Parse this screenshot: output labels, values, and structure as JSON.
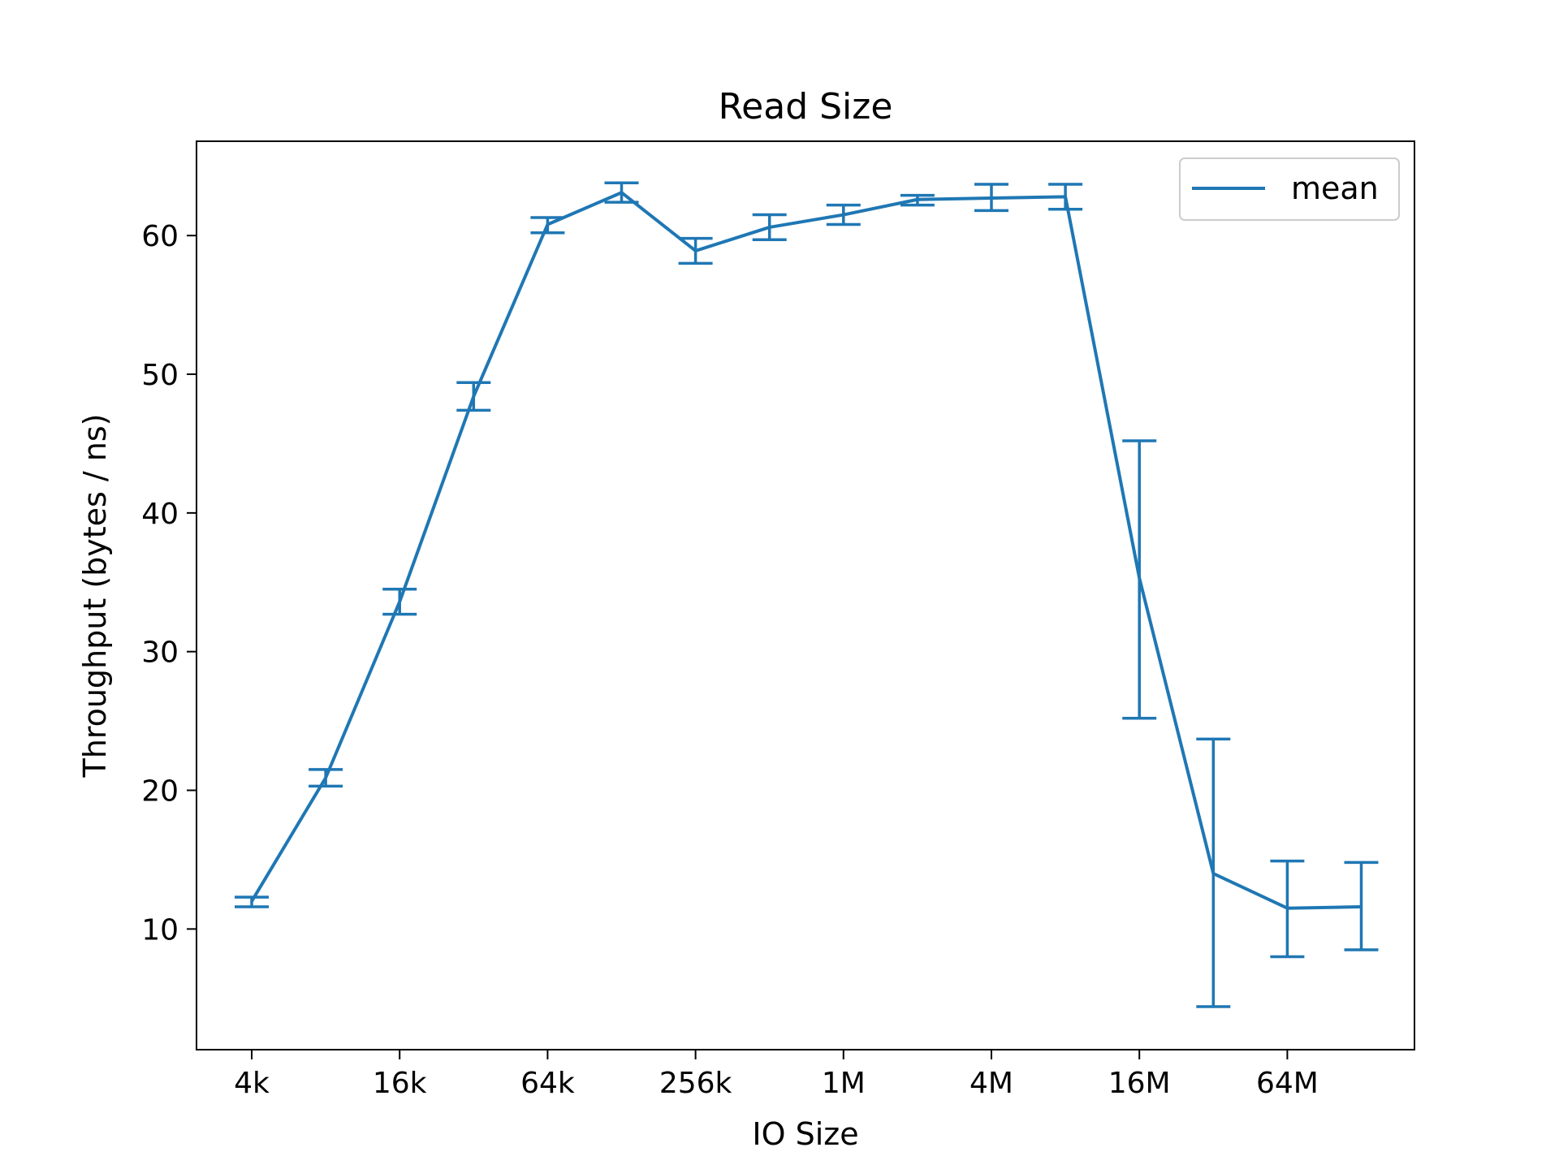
{
  "chart_data": {
    "type": "line",
    "title": "Read Size",
    "xlabel": "IO Size",
    "ylabel": "Throughput (bytes / ns)",
    "x_scale": "log2",
    "x_ticks": [
      "4k",
      "16k",
      "64k",
      "256k",
      "1M",
      "4M",
      "16M",
      "64M"
    ],
    "y_ticks": [
      10,
      20,
      30,
      40,
      50,
      60
    ],
    "ylim": [
      1.3,
      66.8
    ],
    "grid": false,
    "legend_position": "top-right",
    "color": "#1f77b4",
    "series": [
      {
        "name": "mean",
        "x": [
          "4k",
          "8k",
          "16k",
          "32k",
          "64k",
          "128k",
          "256k",
          "512k",
          "1M",
          "2M",
          "4M",
          "8M",
          "16M",
          "32M",
          "64M",
          "128M"
        ],
        "values": [
          12.0,
          20.9,
          33.6,
          48.4,
          60.8,
          63.1,
          58.9,
          60.6,
          61.5,
          62.6,
          62.7,
          62.8,
          35.3,
          14.0,
          11.5,
          11.6
        ],
        "error_low": [
          11.6,
          20.3,
          32.7,
          47.4,
          60.2,
          62.4,
          58.0,
          59.7,
          60.8,
          62.2,
          61.8,
          61.9,
          25.2,
          4.4,
          8.0,
          8.5
        ],
        "error_high": [
          12.3,
          21.5,
          34.5,
          49.4,
          61.3,
          63.8,
          59.8,
          61.5,
          62.2,
          62.9,
          63.7,
          63.7,
          45.2,
          23.7,
          14.9,
          14.8
        ]
      }
    ]
  }
}
